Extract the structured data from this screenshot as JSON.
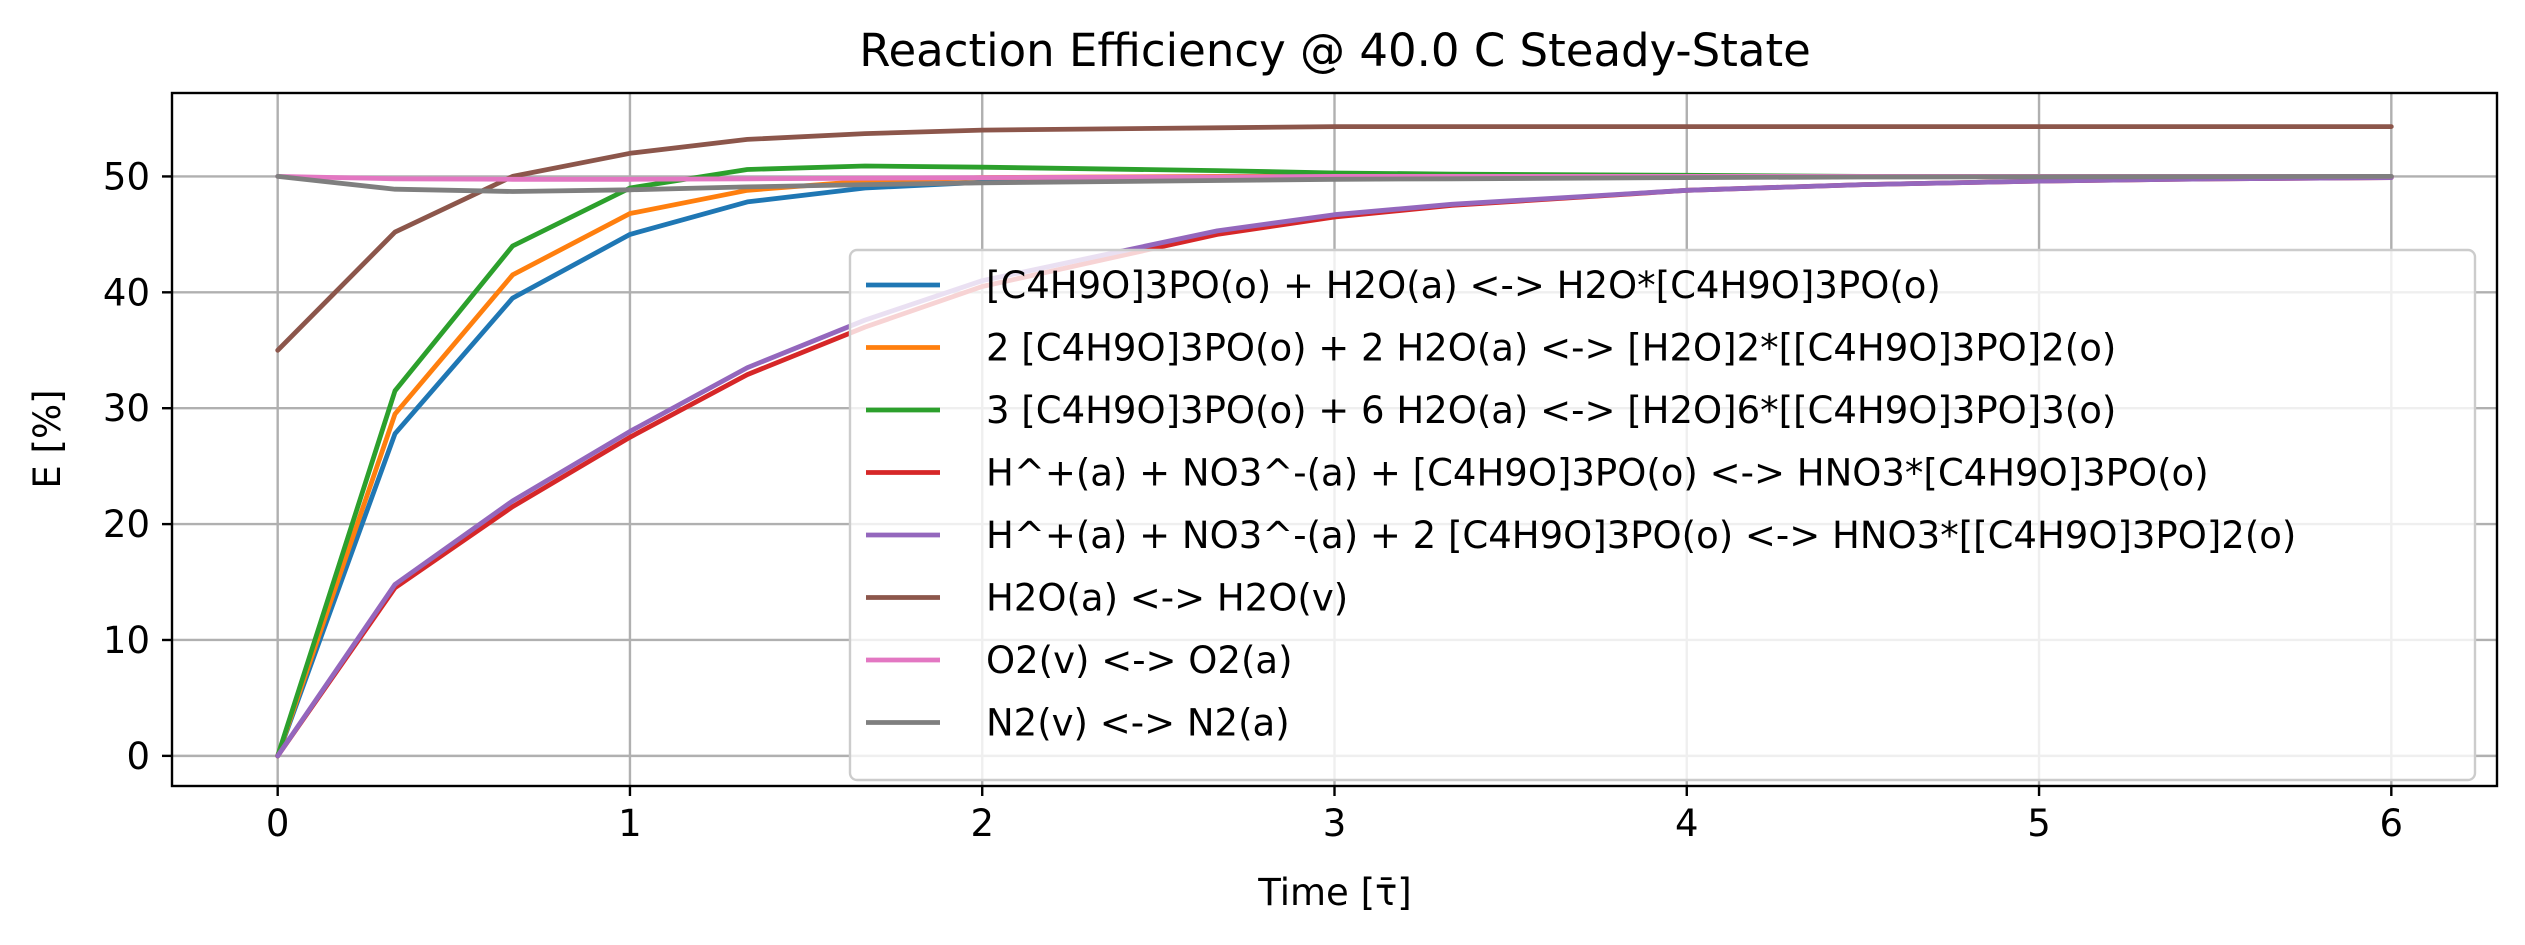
{
  "chart_data": {
    "type": "line",
    "title": "Reaction Efficiency @ 40.0 C Steady-State",
    "xlabel": "Time [τ̄]",
    "ylabel": "E [%]",
    "xlim": [
      -0.3,
      6.3
    ],
    "ylim": [
      -2.6,
      57.2
    ],
    "xticks": [
      0,
      1,
      2,
      3,
      4,
      5,
      6
    ],
    "yticks": [
      0,
      10,
      20,
      30,
      40,
      50
    ],
    "grid": true,
    "legend_position": "lower-right",
    "x": [
      0,
      0.333,
      0.667,
      1,
      1.333,
      1.667,
      2,
      2.667,
      3,
      3.333,
      4,
      4.5,
      5,
      5.5,
      6
    ],
    "series": [
      {
        "name": "[C4H9O]3PO(o) + H2O(a) <-> H2O*[C4H9O]3PO(o)",
        "color": "#1f77b4",
        "values": [
          0,
          27.8,
          39.5,
          45.0,
          47.8,
          49.0,
          49.5,
          49.9,
          50.0,
          50.0,
          50.0,
          50.0,
          50.0,
          50.0,
          50.0
        ]
      },
      {
        "name": "2 [C4H9O]3PO(o) + 2 H2O(a) <-> [H2O]2*[[C4H9O]3PO]2(o)",
        "color": "#ff7f0e",
        "values": [
          0,
          29.5,
          41.5,
          46.8,
          48.8,
          49.6,
          49.9,
          50.0,
          50.0,
          50.0,
          50.0,
          50.0,
          50.0,
          50.0,
          50.0
        ]
      },
      {
        "name": "3 [C4H9O]3PO(o) + 6 H2O(a) <-> [H2O]6*[[C4H9O]3PO]3(o)",
        "color": "#2ca02c",
        "values": [
          0,
          31.5,
          44.0,
          49.0,
          50.6,
          50.9,
          50.8,
          50.5,
          50.3,
          50.2,
          50.1,
          50.0,
          50.0,
          50.0,
          50.0
        ]
      },
      {
        "name": "H^+(a) + NO3^-(a) + [C4H9O]3PO(o) <-> HNO3*[C4H9O]3PO(o)",
        "color": "#d62728",
        "values": [
          0,
          14.5,
          21.5,
          27.5,
          32.9,
          37.0,
          40.5,
          45.0,
          46.5,
          47.5,
          48.8,
          49.3,
          49.6,
          49.8,
          49.9
        ]
      },
      {
        "name": "H^+(a) + NO3^-(a) + 2 [C4H9O]3PO(o) <-> HNO3*[[C4H9O]3PO]2(o)",
        "color": "#9467bd",
        "values": [
          0,
          14.8,
          22.0,
          28.0,
          33.5,
          37.6,
          41.0,
          45.3,
          46.7,
          47.6,
          48.8,
          49.3,
          49.6,
          49.8,
          49.9
        ]
      },
      {
        "name": "H2O(a) <-> H2O(v)",
        "color": "#8c564b",
        "values": [
          35.0,
          45.2,
          50.0,
          52.0,
          53.2,
          53.7,
          54.0,
          54.2,
          54.3,
          54.3,
          54.3,
          54.3,
          54.3,
          54.3,
          54.3
        ]
      },
      {
        "name": "O2(v) <-> O2(a)",
        "color": "#e377c2",
        "values": [
          50.0,
          49.8,
          49.75,
          49.75,
          49.8,
          49.85,
          49.9,
          49.95,
          50.0,
          50.0,
          50.0,
          50.0,
          50.0,
          50.0,
          50.0
        ]
      },
      {
        "name": "N2(v) <-> N2(a)",
        "color": "#7f7f7f",
        "values": [
          50.0,
          48.9,
          48.7,
          48.85,
          49.1,
          49.3,
          49.45,
          49.65,
          49.75,
          49.8,
          49.9,
          49.95,
          49.97,
          49.99,
          50.0
        ]
      }
    ]
  }
}
